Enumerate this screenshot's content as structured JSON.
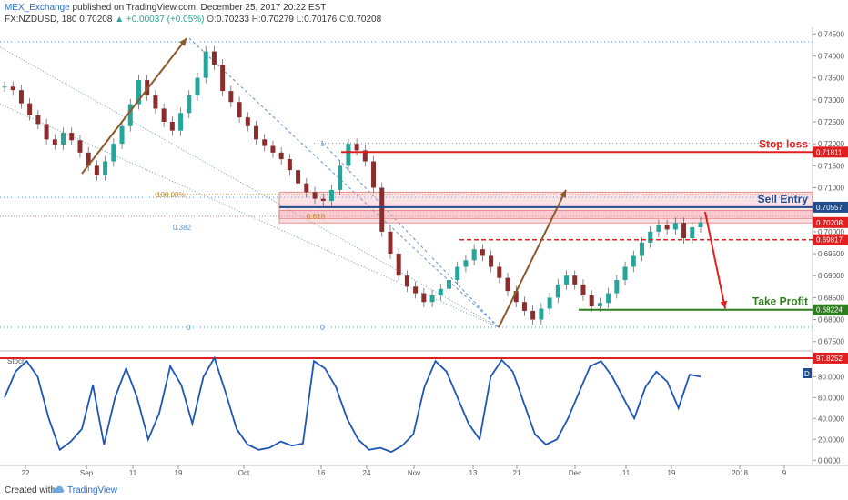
{
  "header": {
    "user": "MEX_Exchange",
    "published_text": "published on TradingView.com, December 25, 2017 20:22 EST",
    "symbol": "FX:NZDUSD, 180",
    "last": "0.70208",
    "change": "+0.00037 (+0.05%)",
    "o_label": "O:",
    "o": "0.70233",
    "h_label": "H:",
    "h": "0.70279",
    "l_label": "L:",
    "l": "0.70176",
    "c_label": "C:",
    "c": "0.70208",
    "up_arrow_icon": "triangle-up-icon"
  },
  "footer": {
    "created_with": "Created with",
    "brand": "TradingView",
    "logo_icon": "tradingview-cloud-icon"
  },
  "colors": {
    "candle_up": "#26a69a",
    "candle_down": "#8b2d2d",
    "resistance": "#e02020",
    "support": "#2e7d1e",
    "entry": "#1f4e8c",
    "stoch": "#1e56b8",
    "arrow_brown": "#8b5a2b",
    "fib": "#5b8fd0"
  },
  "chart_data": [
    {
      "type": "candlestick",
      "title": "",
      "ylim": [
        0.6735,
        0.7465
      ],
      "yticks": [
        "0.74500",
        "0.74000",
        "0.73500",
        "0.73000",
        "0.72500",
        "0.72000",
        "0.71500",
        "0.71000",
        "0.70500",
        "0.70000",
        "0.69500",
        "0.69000",
        "0.68500",
        "0.68000",
        "0.67500"
      ],
      "xticks": [
        "22",
        "Sep",
        "11",
        "19",
        "Oct",
        "16",
        "24",
        "Nov",
        "13",
        "21",
        "Dec",
        "11",
        "19",
        "2018",
        "9"
      ],
      "series": [
        {
          "values": [
            0.733,
            0.7322,
            0.7292,
            0.7265,
            0.7245,
            0.721,
            0.7198,
            0.7225,
            0.7208,
            0.718,
            0.715,
            0.7128,
            0.716,
            0.72,
            0.724,
            0.729,
            0.7345,
            0.731,
            0.728,
            0.725,
            0.723,
            0.727,
            0.731,
            0.735,
            0.741,
            0.738,
            0.732,
            0.7295,
            0.726,
            0.724,
            0.721,
            0.7195,
            0.718,
            0.7165,
            0.714,
            0.711,
            0.709,
            0.7075,
            0.707,
            0.7095,
            0.715,
            0.72,
            0.7185,
            0.716,
            0.71,
            0.7,
            0.695,
            0.69,
            0.6875,
            0.686,
            0.684,
            0.6855,
            0.687,
            0.689,
            0.692,
            0.6935,
            0.696,
            0.6945,
            0.692,
            0.6895,
            0.6865,
            0.684,
            0.682,
            0.68,
            0.6825,
            0.685,
            0.688,
            0.69,
            0.688,
            0.6855,
            0.683,
            0.6838,
            0.686,
            0.689,
            0.692,
            0.6945,
            0.6975,
            0.7,
            0.7015,
            0.7005,
            0.702,
            0.6985,
            0.701,
            0.7021
          ]
        }
      ],
      "annotations": {
        "stop_loss_label": "Stop loss",
        "sell_entry_label": "Sell Entry",
        "take_profit_label": "Take Profit",
        "fib_100": "100.00%",
        "fib_618": "0.618",
        "fib_382": "0.382",
        "fib_1": "1",
        "fib_0a": "0",
        "fib_0b": "0"
      },
      "price_tags": {
        "stop_loss": 0.71811,
        "sell_entry": 0.70557,
        "last": 0.70208,
        "support": 0.69817,
        "take_profit": 0.68224
      }
    },
    {
      "type": "line",
      "title": "",
      "legend_text": "Stoch",
      "ylim": [
        -5,
        103
      ],
      "yticks": [
        "80.0000",
        "60.0000",
        "40.0000",
        "20.0000",
        "0.0000"
      ],
      "level_tag": "97.8252",
      "right_tag": "D",
      "series": [
        {
          "values": [
            60,
            85,
            95,
            80,
            40,
            10,
            18,
            30,
            72,
            15,
            60,
            88,
            60,
            20,
            45,
            90,
            72,
            35,
            80,
            98,
            65,
            30,
            15,
            10,
            12,
            18,
            14,
            16,
            95,
            88,
            70,
            40,
            20,
            10,
            12,
            8,
            14,
            25,
            70,
            95,
            85,
            60,
            35,
            20,
            80,
            96,
            85,
            55,
            25,
            15,
            20,
            40,
            65,
            90,
            95,
            80,
            60,
            40,
            70,
            85,
            75,
            50,
            82,
            80
          ]
        }
      ]
    }
  ]
}
